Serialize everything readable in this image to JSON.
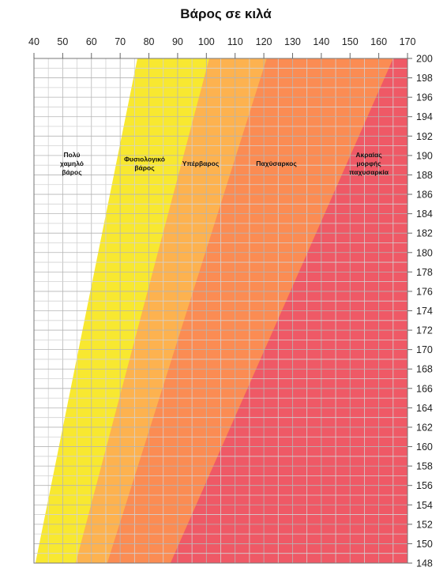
{
  "chart_data": {
    "type": "area",
    "title": "Βάρος σε κιλά",
    "xlabel": "",
    "ylabel": "",
    "x_axis": {
      "range": [
        40,
        170
      ],
      "position": "top",
      "tick_labels": [
        "40",
        "50",
        "60",
        "70",
        "80",
        "90",
        "100",
        "110",
        "120",
        "130",
        "140",
        "150",
        "160",
        "170"
      ]
    },
    "y_axis": {
      "range": [
        148,
        200
      ],
      "position": "right",
      "tick_labels": [
        "148",
        "150",
        "152",
        "154",
        "156",
        "158",
        "160",
        "162",
        "164",
        "166",
        "168",
        "170",
        "172",
        "174",
        "176",
        "178",
        "180",
        "182",
        "184",
        "186",
        "188",
        "190",
        "192",
        "194",
        "196",
        "198",
        "200"
      ]
    },
    "grid": true,
    "zones": [
      {
        "name": "Πολύ χαμηλό βάρος",
        "lines": [
          "Πολύ",
          "χαμηλό",
          "βάρος"
        ],
        "color": "#ffffff",
        "upper_boundary": [
          [
            40.5,
            148
          ],
          [
            76,
            200
          ]
        ]
      },
      {
        "name": "Φυσιολογικό βάρος",
        "lines": [
          "Φυσιολογικό",
          "βάρος"
        ],
        "color": "#f8e830",
        "upper_boundary": [
          [
            54.5,
            148
          ],
          [
            101,
            200
          ]
        ]
      },
      {
        "name": "Υπέρβαρος",
        "lines": [
          "Υπέρβαρος"
        ],
        "color": "#fdb24f",
        "upper_boundary": [
          [
            65.5,
            148
          ],
          [
            121,
            200
          ]
        ]
      },
      {
        "name": "Παχύσαρκος",
        "lines": [
          "Παχύσαρκος"
        ],
        "color": "#fb8c53",
        "upper_boundary": [
          [
            87.5,
            148
          ],
          [
            165,
            200
          ]
        ]
      },
      {
        "name": "Ακραίας μορφής παχυσαρκία",
        "lines": [
          "Ακραίας",
          "μορφής",
          "παχυσαρκία"
        ],
        "color": "#ef5966"
      }
    ]
  }
}
